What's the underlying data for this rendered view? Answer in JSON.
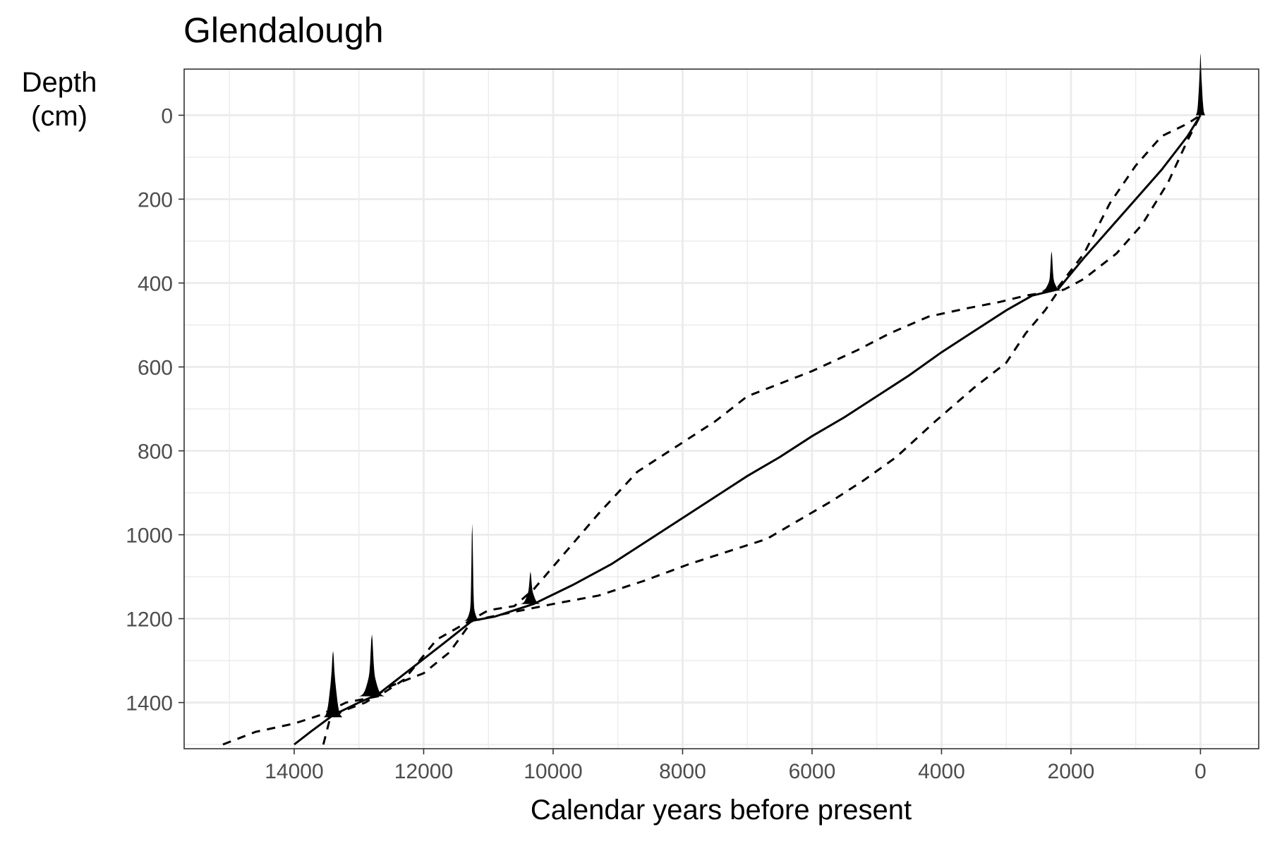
{
  "chart_data": {
    "type": "line",
    "title": "Glendalough",
    "xlabel": "Calendar years before present",
    "ylabel_line1": "Depth",
    "ylabel_line2": "(cm)",
    "xlim": [
      15700,
      -900
    ],
    "ylim": [
      -110,
      1510
    ],
    "x_reversed": true,
    "y_reversed": true,
    "grid": true,
    "x_ticks": [
      14000,
      12000,
      10000,
      8000,
      6000,
      4000,
      2000,
      0
    ],
    "x_tick_labels": [
      "14000",
      "12000",
      "10000",
      "8000",
      "6000",
      "4000",
      "2000",
      "0"
    ],
    "y_ticks": [
      0,
      200,
      400,
      600,
      800,
      1000,
      1200,
      1400
    ],
    "y_tick_labels": [
      "0",
      "200",
      "400",
      "600",
      "800",
      "1000",
      "1200",
      "1400"
    ],
    "series": [
      {
        "style": "solid",
        "x": [
          14000,
          13750,
          13400,
          13000,
          12700,
          12200,
          11700,
          11250,
          10900,
          10300,
          9700,
          9100,
          8500,
          8000,
          7500,
          7000,
          6500,
          6000,
          5500,
          5000,
          4500,
          4000,
          3500,
          3000,
          2600,
          2200,
          1800,
          1400,
          1000,
          600,
          200,
          0
        ],
        "y": [
          1500,
          1470,
          1430,
          1400,
          1380,
          1320,
          1260,
          1205,
          1195,
          1165,
          1120,
          1070,
          1010,
          960,
          910,
          860,
          815,
          765,
          720,
          670,
          620,
          565,
          515,
          465,
          430,
          415,
          340,
          270,
          200,
          130,
          50,
          0
        ]
      },
      {
        "style": "dashed",
        "x": [
          15100,
          14600,
          14000,
          13600,
          13200,
          12700,
          12300,
          11800,
          11400,
          11000,
          10600,
          10300,
          9800,
          9300,
          8700,
          8000,
          7500,
          7000,
          6500,
          6000,
          5300,
          4800,
          4200,
          3600,
          3100,
          2700,
          2500,
          2200,
          1800,
          1400,
          1000,
          600,
          200,
          0
        ],
        "y": [
          1500,
          1470,
          1450,
          1430,
          1400,
          1385,
          1345,
          1250,
          1215,
          1180,
          1170,
          1130,
          1040,
          950,
          850,
          780,
          730,
          670,
          640,
          610,
          560,
          520,
          480,
          460,
          445,
          430,
          425,
          410,
          330,
          210,
          120,
          50,
          20,
          0
        ]
      },
      {
        "style": "dashed",
        "x": [
          13550,
          13450,
          13250,
          12900,
          12500,
          12000,
          11600,
          11250,
          10800,
          10000,
          9300,
          8600,
          7900,
          7200,
          6700,
          6200,
          5700,
          5200,
          4700,
          4100,
          3500,
          3000,
          2700,
          2400,
          2200,
          2100,
          1800,
          1300,
          900,
          500,
          200,
          0
        ],
        "y": [
          1500,
          1440,
          1420,
          1400,
          1360,
          1330,
          1280,
          1205,
          1190,
          1165,
          1145,
          1110,
          1070,
          1035,
          1010,
          965,
          920,
          870,
          815,
          730,
          650,
          590,
          520,
          465,
          420,
          415,
          390,
          330,
          260,
          160,
          60,
          0
        ]
      }
    ],
    "age_densities": [
      {
        "depth": 0,
        "center": 0,
        "halfwidth": 70,
        "height": 88,
        "spike": 0.25
      },
      {
        "depth": 418,
        "center": 2300,
        "halfwidth": 150,
        "height": 56,
        "spike": 0.7
      },
      {
        "depth": 1165,
        "center": 10350,
        "halfwidth": 150,
        "height": 46,
        "spike": 0.55
      },
      {
        "depth": 1205,
        "center": 11250,
        "halfwidth": 120,
        "height": 138,
        "spike": 0.85
      },
      {
        "depth": 1385,
        "center": 12800,
        "halfwidth": 190,
        "height": 88,
        "spike": 0.6
      },
      {
        "depth": 1435,
        "center": 13400,
        "halfwidth": 140,
        "height": 94,
        "spike": 0.3
      }
    ]
  }
}
